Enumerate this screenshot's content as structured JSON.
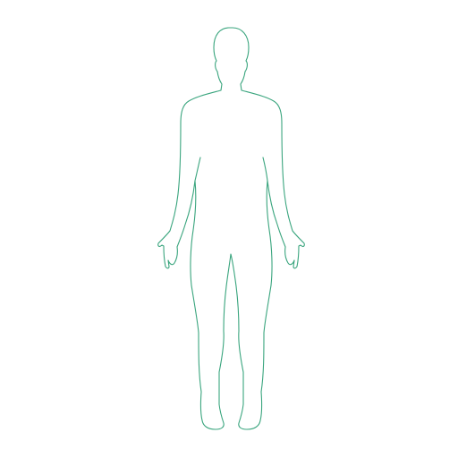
{
  "image": {
    "background_color": "#ffffff",
    "outline_color": "#3aa57e",
    "figure_icon": "human-body-outline-front"
  }
}
